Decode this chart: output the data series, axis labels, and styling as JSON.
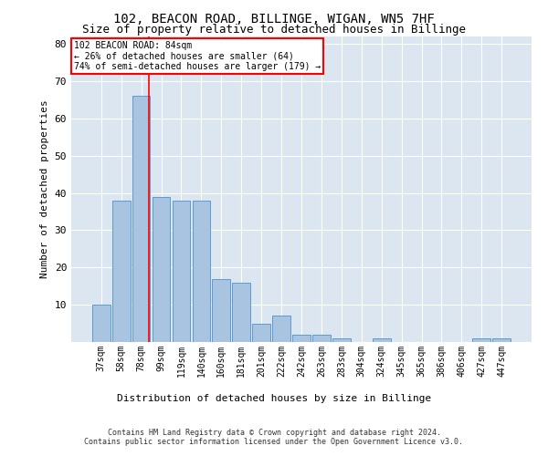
{
  "title1": "102, BEACON ROAD, BILLINGE, WIGAN, WN5 7HF",
  "title2": "Size of property relative to detached houses in Billinge",
  "xlabel": "Distribution of detached houses by size in Billinge",
  "ylabel": "Number of detached properties",
  "categories": [
    "37sqm",
    "58sqm",
    "78sqm",
    "99sqm",
    "119sqm",
    "140sqm",
    "160sqm",
    "181sqm",
    "201sqm",
    "222sqm",
    "242sqm",
    "263sqm",
    "283sqm",
    "304sqm",
    "324sqm",
    "345sqm",
    "365sqm",
    "386sqm",
    "406sqm",
    "427sqm",
    "447sqm"
  ],
  "values": [
    10,
    38,
    66,
    39,
    38,
    38,
    17,
    16,
    5,
    7,
    2,
    2,
    1,
    0,
    1,
    0,
    0,
    0,
    0,
    1,
    1
  ],
  "bar_color": "#a8c4e0",
  "bar_edge_color": "#5b9bd5",
  "background_color": "#dce6f1",
  "annotation_box_text1": "102 BEACON ROAD: 84sqm",
  "annotation_box_text2": "← 26% of detached houses are smaller (64)",
  "annotation_box_text3": "74% of semi-detached houses are larger (179) →",
  "annotation_box_color": "white",
  "annotation_box_edge_color": "red",
  "vline_color": "red",
  "vline_x_index": 2.38,
  "ylim": [
    0,
    82
  ],
  "yticks": [
    0,
    10,
    20,
    30,
    40,
    50,
    60,
    70,
    80
  ],
  "footer1": "Contains HM Land Registry data © Crown copyright and database right 2024.",
  "footer2": "Contains public sector information licensed under the Open Government Licence v3.0.",
  "title1_fontsize": 10,
  "title2_fontsize": 9,
  "annot_fontsize": 7,
  "ylabel_fontsize": 8,
  "xlabel_fontsize": 8,
  "tick_fontsize": 7,
  "footer_fontsize": 6
}
